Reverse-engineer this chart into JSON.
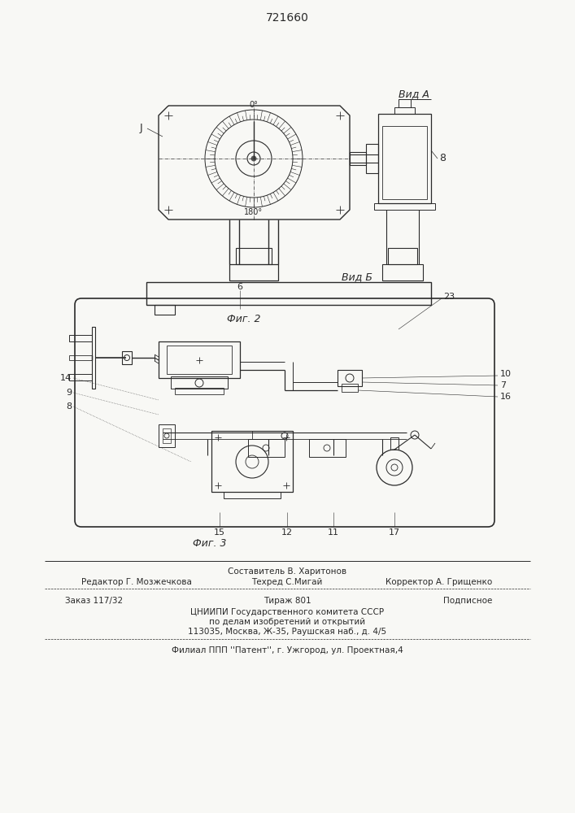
{
  "patent_number": "721660",
  "bg_color": "#f8f8f5",
  "line_color": "#2a2a2a",
  "fig2_label": "Фиг. 2",
  "fig3_label": "Фиг. 3",
  "view_a_label": "Вид А",
  "view_b_label": "Вид Б",
  "footer_line0": "Составитель В. Харитонов",
  "footer_line1_left": "Редактор Г. Мозжечкова",
  "footer_line1_center": "Техред С.Мигай",
  "footer_line1_right": "Корректор А. Грищенко",
  "footer_line2_left": "Заказ 117/32",
  "footer_line2_center": "Тираж 801",
  "footer_line2_right": "Подписное",
  "footer_line3": "ЦНИИПИ Государственного комитета СССР",
  "footer_line4": "по делам изобретений и открытий",
  "footer_line5": "113035, Москва, Ж-35, Раушская наб., д. 4/5",
  "footer_line6": "Филиал ППП ''Патент'', г. Ужгород, ул. Проектная,4"
}
